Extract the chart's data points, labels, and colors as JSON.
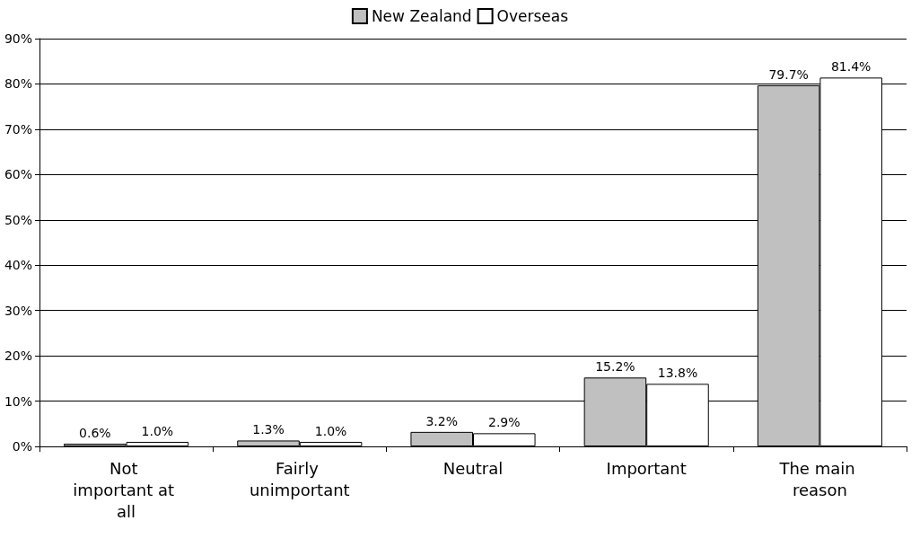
{
  "chart_data": {
    "type": "bar",
    "categories": [
      "Not important at all",
      "Fairly unimportant",
      "Neutral",
      "Important",
      "The main reason"
    ],
    "series": [
      {
        "name": "New Zealand",
        "color": "#c0c0c0",
        "values": [
          0.6,
          1.3,
          3.2,
          15.2,
          79.7
        ],
        "value_labels": [
          "0.6%",
          "1.3%",
          "3.2%",
          "15.2%",
          "79.7%"
        ]
      },
      {
        "name": "Overseas",
        "color": "#ffffff",
        "values": [
          1.0,
          1.0,
          2.9,
          13.8,
          81.4
        ],
        "value_labels": [
          "1.0%",
          "1.0%",
          "2.9%",
          "13.8%",
          "81.4%"
        ]
      }
    ],
    "ylim": [
      0,
      90
    ],
    "yticks": [
      {
        "value": 0,
        "label": "0%"
      },
      {
        "value": 10,
        "label": "10%"
      },
      {
        "value": 20,
        "label": "20%"
      },
      {
        "value": 30,
        "label": "30%"
      },
      {
        "value": 40,
        "label": "40%"
      },
      {
        "value": 50,
        "label": "50%"
      },
      {
        "value": 60,
        "label": "60%"
      },
      {
        "value": 70,
        "label": "70%"
      },
      {
        "value": 80,
        "label": "80%"
      },
      {
        "value": 90,
        "label": "90%"
      }
    ],
    "grid": "y",
    "legend": "top"
  }
}
